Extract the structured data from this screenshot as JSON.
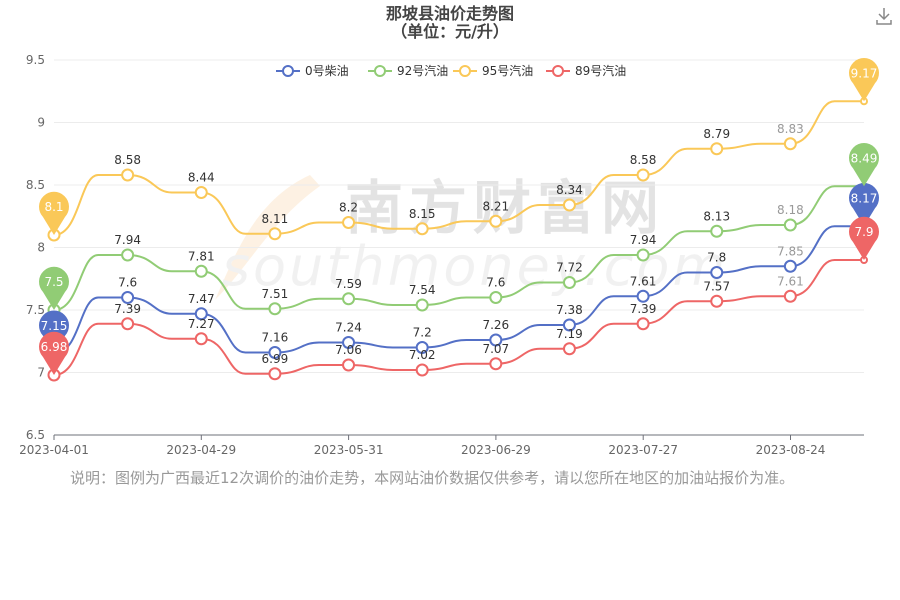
{
  "title": "那坡县油价走势图",
  "subtitle": "（单位：元/升）",
  "note": "说明：图例为广西最近12次调价的油价走势，本网站油价数据仅供参考，请以您所在地区的加油站报价为准。",
  "toolbar": {
    "download_icon": "download-icon"
  },
  "watermark": {
    "cn": "南方财富网",
    "en": "southmoney.com"
  },
  "chart_data": {
    "type": "line",
    "title": "那坡县油价走势图",
    "subtitle": "（单位：元/升）",
    "ylim": [
      6.5,
      9.5
    ],
    "yticks": [
      "6.5",
      "7",
      "7.5",
      "8",
      "8.5",
      "9",
      "9.5"
    ],
    "xticks": [
      "2023-04-01",
      "2023-04-29",
      "2023-05-31",
      "2023-06-29",
      "2023-07-27",
      "2023-08-24"
    ],
    "legend_position": "top",
    "grid": true,
    "series": [
      {
        "name": "0号柴油",
        "color": "#5470c6",
        "values": [
          7.15,
          7.6,
          7.47,
          7.16,
          7.24,
          7.2,
          7.26,
          7.38,
          7.61,
          7.8,
          7.85,
          8.17
        ],
        "labels": [
          "7.15",
          "7.6",
          "7.47",
          "7.16",
          "7.24",
          "7.2",
          "7.26",
          "7.38",
          "7.61",
          "7.8",
          "7.85",
          "8.17"
        ]
      },
      {
        "name": "92号汽油",
        "color": "#91cc75",
        "values": [
          7.5,
          7.94,
          7.81,
          7.51,
          7.59,
          7.54,
          7.6,
          7.72,
          7.94,
          8.13,
          8.18,
          8.49
        ],
        "labels": [
          "7.5",
          "7.94",
          "7.81",
          "7.51",
          "7.59",
          "7.54",
          "7.6",
          "7.72",
          "7.94",
          "8.13",
          "8.18",
          "8.49"
        ]
      },
      {
        "name": "95号汽油",
        "color": "#fac858",
        "values": [
          8.1,
          8.58,
          8.44,
          8.11,
          8.2,
          8.15,
          8.21,
          8.34,
          8.58,
          8.79,
          8.83,
          9.17
        ],
        "labels": [
          "8.1",
          "8.58",
          "8.44",
          "8.11",
          "8.2",
          "8.15",
          "8.21",
          "8.34",
          "8.58",
          "8.79",
          "8.83",
          "9.17"
        ]
      },
      {
        "name": "89号汽油",
        "color": "#ee6666",
        "values": [
          6.98,
          7.39,
          7.27,
          6.99,
          7.06,
          7.02,
          7.07,
          7.19,
          7.39,
          7.57,
          7.61,
          7.9
        ],
        "labels": [
          "6.98",
          "7.39",
          "7.27",
          "6.99",
          "7.06",
          "7.02",
          "7.07",
          "7.19",
          "7.39",
          "7.57",
          "7.61",
          "7.9"
        ]
      }
    ]
  }
}
